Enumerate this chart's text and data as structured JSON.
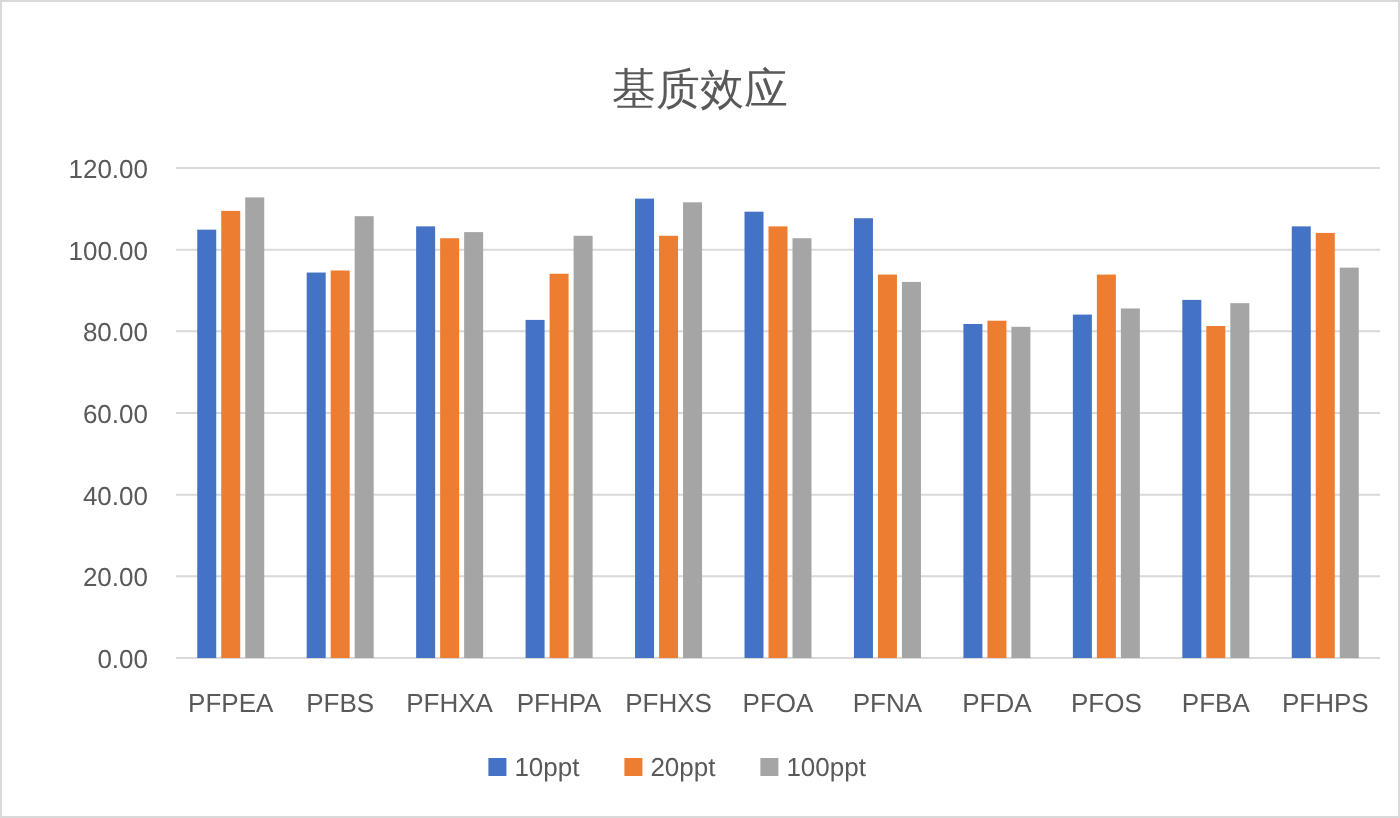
{
  "chart_data": {
    "type": "bar",
    "title": "基质效应",
    "categories": [
      "PFPEA",
      "PFBS",
      "PFHXA",
      "PFHPA",
      "PFHXS",
      "PFOA",
      "PFNA",
      "PFDA",
      "PFOS",
      "PFBA",
      "PFHPS"
    ],
    "series": [
      {
        "name": "10ppt",
        "color": "#4472c4",
        "values": [
          104.9,
          94.4,
          105.7,
          82.8,
          112.5,
          109.3,
          107.7,
          81.8,
          84.1,
          87.7,
          105.7
        ]
      },
      {
        "name": "20ppt",
        "color": "#ed7d31",
        "values": [
          109.5,
          94.9,
          102.8,
          94.1,
          103.4,
          105.7,
          93.9,
          82.6,
          93.9,
          81.3,
          104.1
        ]
      },
      {
        "name": "100ppt",
        "color": "#a5a5a5",
        "values": [
          112.8,
          108.2,
          104.3,
          103.4,
          111.6,
          102.8,
          92.1,
          81.1,
          85.6,
          86.9,
          95.6
        ]
      }
    ],
    "ylim": [
      0,
      120
    ],
    "yticks": [
      {
        "value": 0,
        "label": "0.00"
      },
      {
        "value": 20,
        "label": "20.00"
      },
      {
        "value": 40,
        "label": "40.00"
      },
      {
        "value": 60,
        "label": "60.00"
      },
      {
        "value": 80,
        "label": "80.00"
      },
      {
        "value": 100,
        "label": "100.00"
      },
      {
        "value": 120,
        "label": "120.00"
      }
    ],
    "grid": "y",
    "legend": "bottom"
  }
}
